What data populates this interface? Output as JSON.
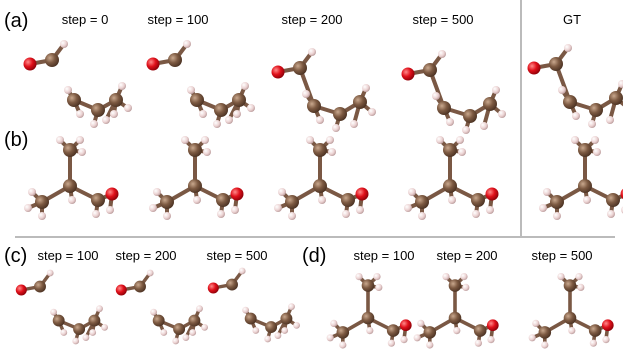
{
  "panels": [
    {
      "label": "(a)",
      "steps": [
        "step = 0",
        "step = 100",
        "step = 200",
        "step = 500",
        "GT"
      ]
    },
    {
      "label": "(b)"
    },
    {
      "label": "(c)",
      "steps": [
        "step = 100",
        "step = 200",
        "step = 500"
      ]
    },
    {
      "label": "(d)",
      "steps": [
        "step = 100",
        "step = 200",
        "step = 500"
      ]
    }
  ]
}
